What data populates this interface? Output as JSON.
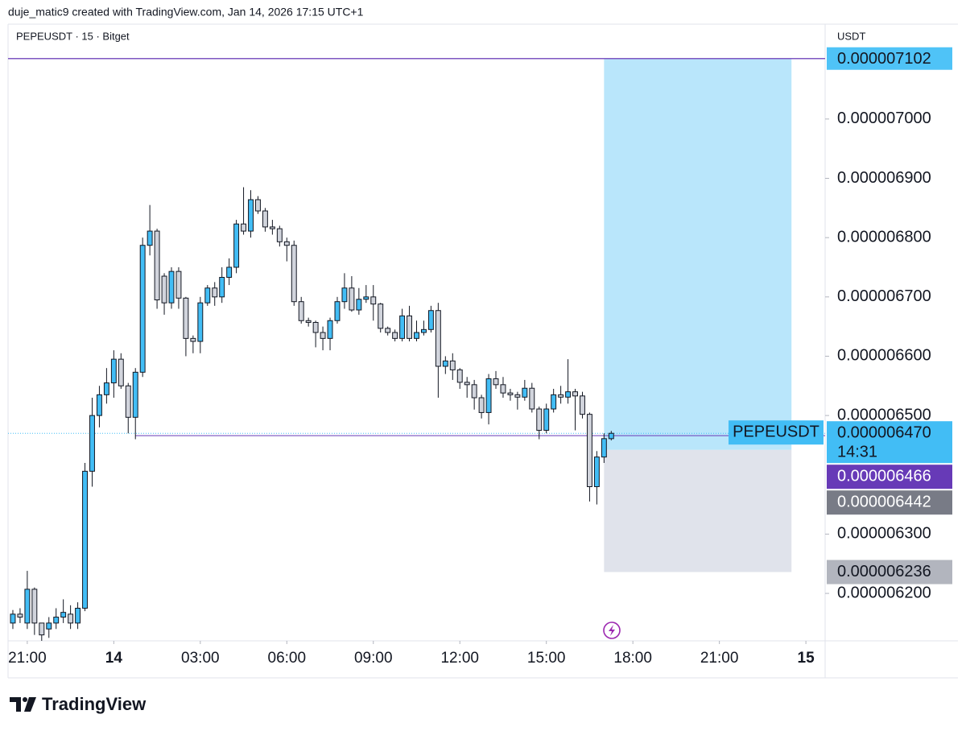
{
  "header": {
    "text": "duje_matic9 created with TradingView.com, Jan 14, 2026 17:15 UTC+1"
  },
  "chart_data": {
    "type": "candlestick",
    "title": "PEPEUSDT · 15 · Bitget",
    "y_axis_label": "USDT",
    "x": [
      "2026-01-13T20:30",
      "2026-01-13T20:45",
      "2026-01-13T21:00",
      "2026-01-13T21:15",
      "2026-01-13T21:30",
      "2026-01-13T21:45",
      "2026-01-13T22:00",
      "2026-01-13T22:15",
      "2026-01-13T22:30",
      "2026-01-13T22:45",
      "2026-01-13T23:00",
      "2026-01-13T23:15",
      "2026-01-13T23:30",
      "2026-01-13T23:45",
      "2026-01-14T00:00",
      "2026-01-14T00:15",
      "2026-01-14T00:30",
      "2026-01-14T00:45",
      "2026-01-14T01:00",
      "2026-01-14T01:15",
      "2026-01-14T01:30",
      "2026-01-14T01:45",
      "2026-01-14T02:00",
      "2026-01-14T02:15",
      "2026-01-14T02:30",
      "2026-01-14T02:45",
      "2026-01-14T03:00",
      "2026-01-14T03:15",
      "2026-01-14T03:30",
      "2026-01-14T03:45",
      "2026-01-14T04:00",
      "2026-01-14T04:15",
      "2026-01-14T04:30",
      "2026-01-14T04:45",
      "2026-01-14T05:00",
      "2026-01-14T05:15",
      "2026-01-14T05:30",
      "2026-01-14T05:45",
      "2026-01-14T06:00",
      "2026-01-14T06:15",
      "2026-01-14T06:30",
      "2026-01-14T06:45",
      "2026-01-14T07:00",
      "2026-01-14T07:15",
      "2026-01-14T07:30",
      "2026-01-14T07:45",
      "2026-01-14T08:00",
      "2026-01-14T08:15",
      "2026-01-14T08:30",
      "2026-01-14T08:45",
      "2026-01-14T09:00",
      "2026-01-14T09:15",
      "2026-01-14T09:30",
      "2026-01-14T09:45",
      "2026-01-14T10:00",
      "2026-01-14T10:15",
      "2026-01-14T10:30",
      "2026-01-14T10:45",
      "2026-01-14T11:00",
      "2026-01-14T11:15",
      "2026-01-14T11:30",
      "2026-01-14T11:45",
      "2026-01-14T12:00",
      "2026-01-14T12:15",
      "2026-01-14T12:30",
      "2026-01-14T12:45",
      "2026-01-14T13:00",
      "2026-01-14T13:15",
      "2026-01-14T13:30",
      "2026-01-14T13:45",
      "2026-01-14T14:00",
      "2026-01-14T14:15",
      "2026-01-14T14:30",
      "2026-01-14T14:45",
      "2026-01-14T15:00",
      "2026-01-14T15:15",
      "2026-01-14T15:30",
      "2026-01-14T15:45",
      "2026-01-14T16:00",
      "2026-01-14T16:15",
      "2026-01-14T16:30",
      "2026-01-14T16:45",
      "2026-01-14T17:00",
      "2026-01-14T17:15"
    ],
    "open": [
      6.15e-06,
      6.165e-06,
      6.15e-06,
      6.207e-06,
      6.15e-06,
      6.14e-06,
      6.15e-06,
      6.16e-06,
      6.165e-06,
      6.15e-06,
      6.175e-06,
      6.406e-06,
      6.5e-06,
      6.535e-06,
      6.555e-06,
      6.595e-06,
      6.55e-06,
      6.497e-06,
      6.573e-06,
      6.787e-06,
      6.811e-06,
      6.735e-06,
      6.69e-06,
      6.743e-06,
      6.698e-06,
      6.63e-06,
      6.625e-06,
      6.69e-06,
      6.715e-06,
      6.7e-06,
      6.733e-06,
      6.75e-06,
      6.823e-06,
      6.811e-06,
      6.864e-06,
      6.845e-06,
      6.818e-06,
      6.815e-06,
      6.793e-06,
      6.787e-06,
      6.692e-06,
      6.66e-06,
      6.657e-06,
      6.64e-06,
      6.63e-06,
      6.66e-06,
      6.692e-06,
      6.715e-06,
      6.678e-06,
      6.696e-06,
      6.7e-06,
      6.688e-06,
      6.647e-06,
      6.64e-06,
      6.63e-06,
      6.668e-06,
      6.63e-06,
      6.64e-06,
      6.645e-06,
      6.677e-06,
      6.583e-06,
      6.592e-06,
      6.577e-06,
      6.556e-06,
      6.552e-06,
      6.53e-06,
      6.505e-06,
      6.562e-06,
      6.552e-06,
      6.538e-06,
      6.535e-06,
      6.531e-06,
      6.546e-06,
      6.511e-06,
      6.475e-06,
      6.511e-06,
      6.535e-06,
      6.531e-06,
      6.54e-06,
      6.533e-06,
      6.502e-06,
      6.38e-06,
      6.43e-06,
      6.461e-06
    ],
    "high": [
      6.172e-06,
      6.175e-06,
      6.238e-06,
      6.21e-06,
      6.15e-06,
      6.16e-06,
      6.175e-06,
      6.19e-06,
      6.18e-06,
      6.185e-06,
      6.42e-06,
      6.53e-06,
      6.55e-06,
      6.58e-06,
      6.61e-06,
      6.605e-06,
      6.555e-06,
      6.58e-06,
      6.8e-06,
      6.855e-06,
      6.815e-06,
      6.74e-06,
      6.75e-06,
      6.75e-06,
      6.7e-06,
      6.635e-06,
      6.7e-06,
      6.72e-06,
      6.725e-06,
      6.75e-06,
      6.765e-06,
      6.83e-06,
      6.885e-06,
      6.88e-06,
      6.87e-06,
      6.85e-06,
      6.83e-06,
      6.82e-06,
      6.8e-06,
      6.795e-06,
      6.7e-06,
      6.665e-06,
      6.66e-06,
      6.65e-06,
      6.665e-06,
      6.7e-06,
      6.74e-06,
      6.735e-06,
      6.715e-06,
      6.72e-06,
      6.72e-06,
      6.69e-06,
      6.65e-06,
      6.645e-06,
      6.68e-06,
      6.685e-06,
      6.66e-06,
      6.66e-06,
      6.685e-06,
      6.69e-06,
      6.6e-06,
      6.605e-06,
      6.58e-06,
      6.565e-06,
      6.56e-06,
      6.535e-06,
      6.57e-06,
      6.575e-06,
      6.565e-06,
      6.545e-06,
      6.54e-06,
      6.56e-06,
      6.555e-06,
      6.515e-06,
      6.52e-06,
      6.545e-06,
      6.55e-06,
      6.595e-06,
      6.545e-06,
      6.54e-06,
      6.505e-06,
      6.44e-06,
      6.47e-06,
      6.474e-06
    ],
    "low": [
      6.14e-06,
      6.15e-06,
      6.14e-06,
      6.13e-06,
      6.12e-06,
      6.125e-06,
      6.14e-06,
      6.15e-06,
      6.14e-06,
      6.14e-06,
      6.17e-06,
      6.38e-06,
      6.48e-06,
      6.52e-06,
      6.53e-06,
      6.545e-06,
      6.47e-06,
      6.46e-06,
      6.565e-06,
      6.77e-06,
      6.68e-06,
      6.67e-06,
      6.68e-06,
      6.68e-06,
      6.6e-06,
      6.605e-06,
      6.605e-06,
      6.685e-06,
      6.685e-06,
      6.69e-06,
      6.72e-06,
      6.74e-06,
      6.805e-06,
      6.8e-06,
      6.84e-06,
      6.81e-06,
      6.805e-06,
      6.785e-06,
      6.76e-06,
      6.685e-06,
      6.655e-06,
      6.65e-06,
      6.615e-06,
      6.61e-06,
      6.61e-06,
      6.655e-06,
      6.68e-06,
      6.675e-06,
      6.67e-06,
      6.69e-06,
      6.66e-06,
      6.64e-06,
      6.635e-06,
      6.625e-06,
      6.625e-06,
      6.625e-06,
      6.625e-06,
      6.635e-06,
      6.64e-06,
      6.53e-06,
      6.57e-06,
      6.56e-06,
      6.545e-06,
      6.53e-06,
      6.51e-06,
      6.495e-06,
      6.485e-06,
      6.545e-06,
      6.53e-06,
      6.525e-06,
      6.51e-06,
      6.525e-06,
      6.505e-06,
      6.46e-06,
      6.47e-06,
      6.505e-06,
      6.52e-06,
      6.52e-06,
      6.475e-06,
      6.495e-06,
      6.355e-06,
      6.35e-06,
      6.42e-06,
      6.458e-06
    ],
    "close": [
      6.165e-06,
      6.16e-06,
      6.207e-06,
      6.15e-06,
      6.13e-06,
      6.15e-06,
      6.16e-06,
      6.168e-06,
      6.15e-06,
      6.175e-06,
      6.406e-06,
      6.5e-06,
      6.535e-06,
      6.555e-06,
      6.595e-06,
      6.55e-06,
      6.497e-06,
      6.573e-06,
      6.787e-06,
      6.811e-06,
      6.695e-06,
      6.69e-06,
      6.743e-06,
      6.698e-06,
      6.63e-06,
      6.625e-06,
      6.69e-06,
      6.715e-06,
      6.7e-06,
      6.733e-06,
      6.75e-06,
      6.823e-06,
      6.811e-06,
      6.864e-06,
      6.845e-06,
      6.818e-06,
      6.815e-06,
      6.793e-06,
      6.787e-06,
      6.692e-06,
      6.66e-06,
      6.657e-06,
      6.64e-06,
      6.63e-06,
      6.66e-06,
      6.692e-06,
      6.715e-06,
      6.678e-06,
      6.696e-06,
      6.7e-06,
      6.688e-06,
      6.647e-06,
      6.64e-06,
      6.63e-06,
      6.668e-06,
      6.63e-06,
      6.64e-06,
      6.645e-06,
      6.677e-06,
      6.583e-06,
      6.592e-06,
      6.577e-06,
      6.556e-06,
      6.552e-06,
      6.53e-06,
      6.505e-06,
      6.562e-06,
      6.552e-06,
      6.538e-06,
      6.535e-06,
      6.531e-06,
      6.546e-06,
      6.511e-06,
      6.475e-06,
      6.511e-06,
      6.535e-06,
      6.531e-06,
      6.54e-06,
      6.533e-06,
      6.502e-06,
      6.38e-06,
      6.43e-06,
      6.461e-06,
      6.47e-06
    ],
    "up_color": "#42bdf5",
    "down_color": "#d1d4dc",
    "xlim": [
      "2026-01-13T20:20",
      "2026-01-15T00:40"
    ],
    "ylim": [
      6.12e-06,
      7.16e-06
    ],
    "yticks": [
      {
        "value": 6.2e-06,
        "label": "0.000006200"
      },
      {
        "value": 6.3e-06,
        "label": "0.000006300"
      },
      {
        "value": 6.5e-06,
        "label": "0.000006500"
      },
      {
        "value": 6.6e-06,
        "label": "0.000006600"
      },
      {
        "value": 6.7e-06,
        "label": "0.000006700"
      },
      {
        "value": 6.8e-06,
        "label": "0.000006800"
      },
      {
        "value": 6.9e-06,
        "label": "0.000006900"
      },
      {
        "value": 7e-06,
        "label": "0.000007000"
      }
    ],
    "xticks": [
      {
        "value": "2026-01-13T21:00",
        "label": "21:00"
      },
      {
        "value": "2026-01-14T00:00",
        "label": "14"
      },
      {
        "value": "2026-01-14T03:00",
        "label": "03:00"
      },
      {
        "value": "2026-01-14T06:00",
        "label": "06:00"
      },
      {
        "value": "2026-01-14T09:00",
        "label": "09:00"
      },
      {
        "value": "2026-01-14T12:00",
        "label": "12:00"
      },
      {
        "value": "2026-01-14T15:00",
        "label": "15:00"
      },
      {
        "value": "2026-01-14T18:00",
        "label": "18:00"
      },
      {
        "value": "2026-01-14T21:00",
        "label": "21:00"
      },
      {
        "value": "2026-01-15T00:00",
        "label": "15"
      }
    ],
    "last_price": {
      "symbol": "PEPEUSDT",
      "value": 6.47e-06,
      "label": "0.000006470",
      "countdown": "14:31",
      "color": "#42bdf5"
    },
    "horizontal_line": {
      "value": 6.466e-06,
      "label": "0.000006466",
      "color": "#673ab7",
      "from": "2026-01-14T00:45"
    },
    "long_position": {
      "from": "2026-01-14T17:00",
      "to": "2026-01-14T23:30",
      "target": {
        "value": 7.102e-06,
        "label": "0.000007102",
        "color": "#4fc3f7"
      },
      "entry": {
        "value": 6.442e-06,
        "label": "0.000006442",
        "color": "#787b86"
      },
      "stop": {
        "value": 6.236e-06,
        "label": "0.000006236",
        "color": "#b2b5be"
      },
      "profit_color": "#b9e6fb",
      "loss_color": "#e0e3eb",
      "line_color": "#7e57c2"
    }
  },
  "footer": {
    "brand": "TradingView"
  }
}
